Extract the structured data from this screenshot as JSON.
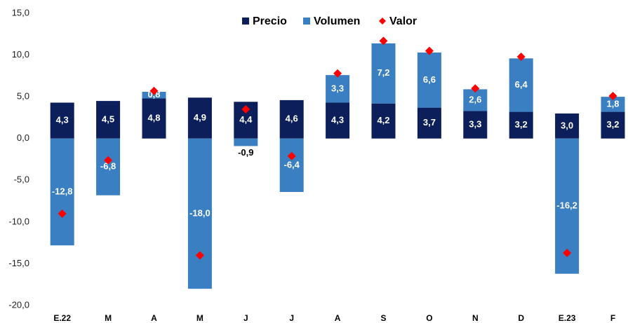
{
  "chart_data": {
    "type": "bar",
    "stacked": true,
    "categories": [
      "E.22",
      "M",
      "A",
      "M",
      "J",
      "J",
      "A",
      "S",
      "O",
      "N",
      "D",
      "E.23",
      "F"
    ],
    "series": [
      {
        "name": "Precio",
        "color": "#0c1f5b",
        "type": "bar",
        "values": [
          4.3,
          4.5,
          4.8,
          4.9,
          4.4,
          4.6,
          4.3,
          4.2,
          3.7,
          3.3,
          3.2,
          3.0,
          3.2
        ],
        "value_labels": [
          "4,3",
          "4,5",
          "4,8",
          "4,9",
          "4,4",
          "4,6",
          "4,3",
          "4,2",
          "3,7",
          "3,3",
          "3,2",
          "3,0",
          "3,2"
        ]
      },
      {
        "name": "Volumen",
        "color": "#3a7fc1",
        "type": "bar",
        "values": [
          -12.8,
          -6.8,
          0.8,
          -18.0,
          -0.9,
          -6.4,
          3.3,
          7.2,
          6.6,
          2.6,
          6.4,
          -16.2,
          1.8
        ],
        "value_labels": [
          "-12,8",
          "-6,8",
          "0,8",
          "-18,0",
          "-0,9",
          "-6,4",
          "3,3",
          "7,2",
          "6,6",
          "2,6",
          "6,4",
          "-16,2",
          "1,8"
        ]
      },
      {
        "name": "Valor",
        "color": "#ff0000",
        "type": "scatter",
        "values": [
          -9.0,
          -2.6,
          5.7,
          -14.0,
          3.5,
          -2.1,
          7.8,
          11.7,
          10.5,
          6.0,
          9.8,
          -13.7,
          5.1
        ]
      }
    ],
    "ylim": [
      -20,
      15
    ],
    "yticks": [
      {
        "value": -20,
        "label": "-20,0"
      },
      {
        "value": -15,
        "label": "-15,0"
      },
      {
        "value": -10,
        "label": "-10,0"
      },
      {
        "value": -5,
        "label": "-5,0"
      },
      {
        "value": 0,
        "label": "0,0"
      },
      {
        "value": 5,
        "label": "5,0"
      },
      {
        "value": 10,
        "label": "10,0"
      },
      {
        "value": 15,
        "label": "15,0"
      }
    ],
    "grid": false,
    "legend": "top"
  }
}
